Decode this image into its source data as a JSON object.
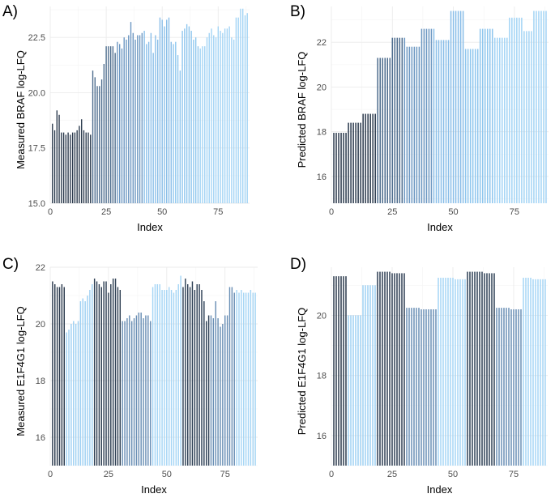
{
  "chart_data": [
    {
      "panel": "A)",
      "type": "bar",
      "xlabel": "Index",
      "ylabel": "Measured BRAF log-LFQ",
      "xlim": [
        0,
        89
      ],
      "ylim": [
        15.0,
        23.9
      ],
      "xticks": [
        "0",
        "25",
        "50",
        "75"
      ],
      "yticks": [
        "15.0",
        "17.5",
        "20.0",
        "22.5"
      ],
      "grid": true,
      "x": [
        1,
        2,
        3,
        4,
        5,
        6,
        7,
        8,
        9,
        10,
        11,
        12,
        13,
        14,
        15,
        16,
        17,
        18,
        19,
        20,
        21,
        22,
        23,
        24,
        25,
        26,
        27,
        28,
        29,
        30,
        31,
        32,
        33,
        34,
        35,
        36,
        37,
        38,
        39,
        40,
        41,
        42,
        43,
        44,
        45,
        46,
        47,
        48,
        49,
        50,
        51,
        52,
        53,
        54,
        55,
        56,
        57,
        58,
        59,
        60,
        61,
        62,
        63,
        64,
        65,
        66,
        67,
        68,
        69,
        70,
        71,
        72,
        73,
        74,
        75,
        76,
        77,
        78,
        79,
        80,
        81,
        82,
        83,
        84,
        85,
        86,
        87,
        88
      ],
      "values": [
        18.6,
        18.3,
        19.2,
        19.0,
        18.2,
        18.2,
        18.1,
        18.2,
        18.1,
        18.2,
        18.2,
        18.3,
        18.5,
        18.8,
        18.3,
        18.2,
        18.2,
        18.1,
        21.0,
        20.7,
        20.3,
        20.3,
        20.6,
        21.3,
        22.1,
        22.1,
        22.1,
        22.1,
        21.8,
        22.3,
        22.2,
        22.0,
        22.5,
        22.4,
        22.6,
        23.2,
        22.7,
        22.4,
        22.6,
        22.6,
        22.7,
        22.8,
        22.2,
        22.3,
        22.7,
        21.8,
        22.6,
        22.4,
        23.4,
        23.3,
        23.0,
        23.3,
        23.4,
        22.3,
        22.2,
        22.3,
        21.7,
        21.0,
        22.8,
        22.9,
        23.1,
        23.0,
        22.8,
        22.4,
        22.5,
        22.1,
        22.0,
        22.1,
        22.1,
        22.5,
        22.7,
        22.9,
        22.6,
        22.5,
        23.0,
        22.8,
        22.7,
        22.9,
        22.9,
        23.0,
        22.5,
        22.4,
        23.4,
        23.4,
        23.8,
        23.8,
        23.5,
        23.6
      ],
      "group_sizes": [
        18,
        11,
        12,
        13,
        12,
        22
      ],
      "colors": [
        "#2b3a4d",
        "#4e6d8e",
        "#6c97c2",
        "#88bde8",
        "#8ec6ee",
        "#a3d4f5"
      ]
    },
    {
      "panel": "B)",
      "type": "bar",
      "xlabel": "Index",
      "ylabel": "Predicted BRAF log-LFQ",
      "xlim": [
        0,
        89
      ],
      "ylim": [
        14.8,
        23.6
      ],
      "xticks": [
        "0",
        "25",
        "50",
        "75"
      ],
      "yticks": [
        "16",
        "18",
        "20",
        "22"
      ],
      "grid": true,
      "x": [
        1,
        2,
        3,
        4,
        5,
        6,
        7,
        8,
        9,
        10,
        11,
        12,
        13,
        14,
        15,
        16,
        17,
        18,
        19,
        20,
        21,
        22,
        23,
        24,
        25,
        26,
        27,
        28,
        29,
        30,
        31,
        32,
        33,
        34,
        35,
        36,
        37,
        38,
        39,
        40,
        41,
        42,
        43,
        44,
        45,
        46,
        47,
        48,
        49,
        50,
        51,
        52,
        53,
        54,
        55,
        56,
        57,
        58,
        59,
        60,
        61,
        62,
        63,
        64,
        65,
        66,
        67,
        68,
        69,
        70,
        71,
        72,
        73,
        74,
        75,
        76,
        77,
        78,
        79,
        80,
        81,
        82,
        83,
        84,
        85,
        86,
        87,
        88
      ],
      "values": [
        17.95,
        17.95,
        17.95,
        17.95,
        17.95,
        17.95,
        18.4,
        18.4,
        18.4,
        18.4,
        18.4,
        18.4,
        18.8,
        18.8,
        18.8,
        18.8,
        18.8,
        18.8,
        21.3,
        21.3,
        21.3,
        21.3,
        21.3,
        21.3,
        22.2,
        22.2,
        22.2,
        22.2,
        22.2,
        22.2,
        21.8,
        21.8,
        21.8,
        21.8,
        21.8,
        21.8,
        22.6,
        22.6,
        22.6,
        22.6,
        22.6,
        22.6,
        22.1,
        22.1,
        22.1,
        22.1,
        22.1,
        22.1,
        23.4,
        23.4,
        23.4,
        23.4,
        23.4,
        23.4,
        21.7,
        21.7,
        21.7,
        21.7,
        21.7,
        21.7,
        22.6,
        22.6,
        22.6,
        22.6,
        22.6,
        22.6,
        22.2,
        22.2,
        22.2,
        22.2,
        22.2,
        22.2,
        23.1,
        23.1,
        23.1,
        23.1,
        23.1,
        23.1,
        22.5,
        22.5,
        22.5,
        22.5,
        23.4,
        23.4,
        23.4,
        23.4,
        23.4,
        23.4
      ],
      "group_sizes": [
        18,
        11,
        12,
        13,
        12,
        22
      ],
      "colors": [
        "#2b3a4d",
        "#4e6d8e",
        "#6c97c2",
        "#88bde8",
        "#8ec6ee",
        "#a3d4f5"
      ]
    },
    {
      "panel": "C)",
      "type": "bar",
      "xlabel": "Index",
      "ylabel": "Measured E1F4G1 log-LFQ",
      "xlim": [
        0,
        89
      ],
      "ylim": [
        15.0,
        22.0
      ],
      "xticks": [
        "0",
        "25",
        "50",
        "75"
      ],
      "yticks": [
        "16",
        "18",
        "20",
        "22"
      ],
      "grid": true,
      "x": [
        1,
        2,
        3,
        4,
        5,
        6,
        7,
        8,
        9,
        10,
        11,
        12,
        13,
        14,
        15,
        16,
        17,
        18,
        19,
        20,
        21,
        22,
        23,
        24,
        25,
        26,
        27,
        28,
        29,
        30,
        31,
        32,
        33,
        34,
        35,
        36,
        37,
        38,
        39,
        40,
        41,
        42,
        43,
        44,
        45,
        46,
        47,
        48,
        49,
        50,
        51,
        52,
        53,
        54,
        55,
        56,
        57,
        58,
        59,
        60,
        61,
        62,
        63,
        64,
        65,
        66,
        67,
        68,
        69,
        70,
        71,
        72,
        73,
        74,
        75,
        76,
        77,
        78,
        79,
        80,
        81,
        82,
        83,
        84,
        85,
        86,
        87,
        88
      ],
      "values": [
        21.5,
        21.4,
        21.3,
        21.3,
        21.4,
        21.3,
        19.7,
        19.8,
        20.0,
        20.1,
        20.0,
        20.1,
        20.8,
        20.9,
        20.8,
        21.0,
        21.2,
        21.4,
        21.6,
        21.5,
        21.4,
        21.3,
        21.5,
        21.5,
        21.1,
        21.4,
        21.6,
        21.6,
        21.3,
        21.2,
        20.1,
        20.1,
        20.2,
        20.3,
        20.1,
        20.2,
        20.3,
        20.4,
        20.4,
        20.2,
        20.3,
        20.3,
        20.1,
        21.3,
        21.4,
        21.4,
        21.4,
        21.2,
        21.2,
        21.2,
        21.3,
        21.2,
        21.1,
        21.2,
        21.4,
        21.7,
        21.3,
        21.6,
        21.4,
        21.3,
        21.5,
        21.2,
        21.4,
        21.4,
        21.2,
        20.8,
        20.1,
        20.3,
        20.3,
        20.2,
        20.8,
        20.2,
        19.9,
        20.0,
        20.3,
        20.3,
        21.3,
        21.3,
        21.1,
        21.2,
        21.1,
        21.2,
        21.1,
        21.1,
        21.1,
        21.2,
        21.1,
        21.1
      ],
      "group_sizes": [
        6,
        12,
        12,
        13,
        13,
        12,
        11,
        9
      ],
      "colors": [
        "#2b3a4d",
        "#9ed0f3",
        "#2e3f53",
        "#6a8fb5",
        "#a5d5f5",
        "#2f4156",
        "#6a8fb5",
        "#a5d5f5"
      ]
    },
    {
      "panel": "D)",
      "type": "bar",
      "xlabel": "Index",
      "ylabel": "Predicted E1F4G1 log-LFQ",
      "xlim": [
        0,
        89
      ],
      "ylim": [
        15.0,
        21.6
      ],
      "xticks": [
        "0",
        "25",
        "50",
        "75"
      ],
      "yticks": [
        "16",
        "18",
        "20"
      ],
      "grid": true,
      "x": [
        1,
        2,
        3,
        4,
        5,
        6,
        7,
        8,
        9,
        10,
        11,
        12,
        13,
        14,
        15,
        16,
        17,
        18,
        19,
        20,
        21,
        22,
        23,
        24,
        25,
        26,
        27,
        28,
        29,
        30,
        31,
        32,
        33,
        34,
        35,
        36,
        37,
        38,
        39,
        40,
        41,
        42,
        43,
        44,
        45,
        46,
        47,
        48,
        49,
        50,
        51,
        52,
        53,
        54,
        55,
        56,
        57,
        58,
        59,
        60,
        61,
        62,
        63,
        64,
        65,
        66,
        67,
        68,
        69,
        70,
        71,
        72,
        73,
        74,
        75,
        76,
        77,
        78,
        79,
        80,
        81,
        82,
        83,
        84,
        85,
        86,
        87,
        88
      ],
      "values": [
        21.3,
        21.3,
        21.3,
        21.3,
        21.3,
        21.3,
        20.0,
        20.0,
        20.0,
        20.0,
        20.0,
        20.0,
        21.0,
        21.0,
        21.0,
        21.0,
        21.0,
        21.0,
        21.45,
        21.45,
        21.45,
        21.45,
        21.45,
        21.45,
        21.4,
        21.4,
        21.4,
        21.4,
        21.4,
        21.4,
        20.25,
        20.25,
        20.25,
        20.25,
        20.25,
        20.25,
        20.2,
        20.2,
        20.2,
        20.2,
        20.2,
        20.2,
        20.2,
        21.25,
        21.25,
        21.25,
        21.25,
        21.25,
        21.25,
        21.25,
        21.2,
        21.2,
        21.2,
        21.2,
        21.2,
        21.45,
        21.45,
        21.45,
        21.45,
        21.45,
        21.45,
        21.45,
        21.4,
        21.4,
        21.4,
        21.4,
        21.4,
        20.25,
        20.25,
        20.25,
        20.25,
        20.25,
        20.25,
        20.2,
        20.2,
        20.2,
        20.2,
        20.2,
        21.25,
        21.25,
        21.25,
        21.25,
        21.2,
        21.2,
        21.2,
        21.2,
        21.2,
        21.2
      ],
      "group_sizes": [
        6,
        12,
        12,
        13,
        12,
        12,
        11,
        10
      ],
      "colors": [
        "#2b3a4d",
        "#9ed0f3",
        "#2e3f53",
        "#6a8fb5",
        "#a5d5f5",
        "#2f4156",
        "#6a8fb5",
        "#a5d5f5"
      ]
    }
  ]
}
